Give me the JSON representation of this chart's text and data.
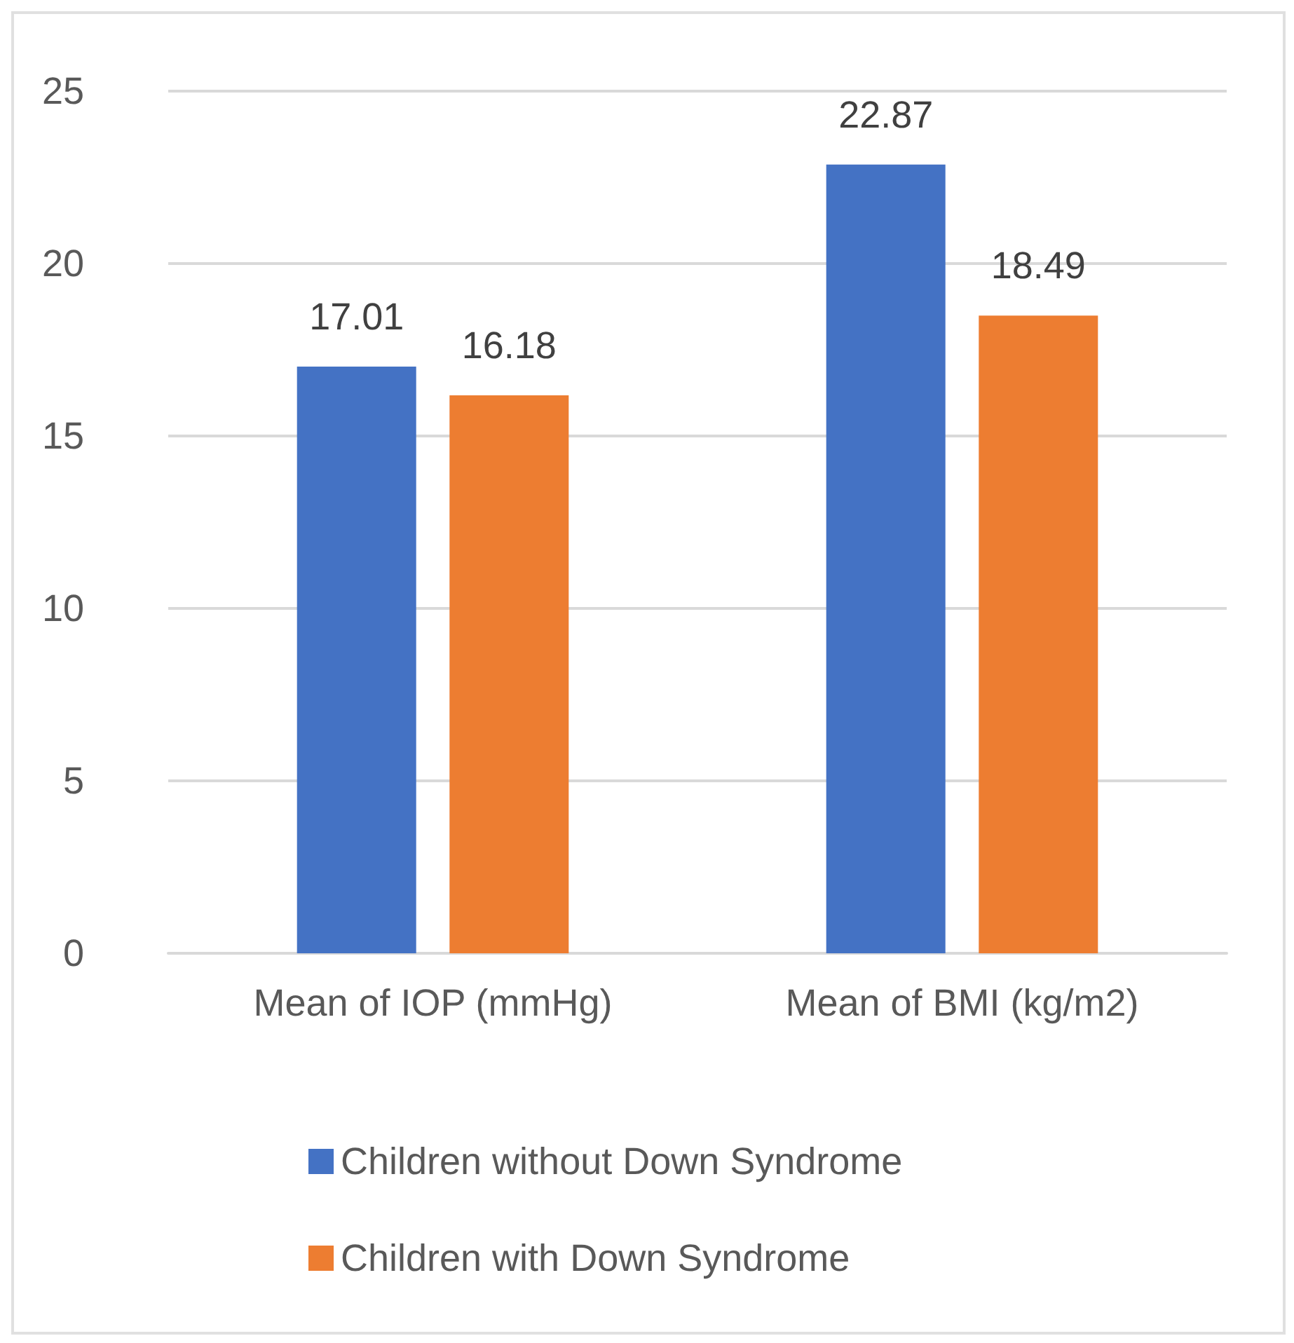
{
  "chart_data": {
    "type": "bar",
    "categories": [
      "Mean of IOP (mmHg)",
      "Mean of BMI (kg/m2)"
    ],
    "series": [
      {
        "name": "Children without Down Syndrome",
        "color": "#4472c4",
        "values": [
          17.01,
          22.87
        ]
      },
      {
        "name": "Children with Down Syndrome",
        "color": "#ed7d31",
        "values": [
          16.18,
          18.49
        ]
      }
    ],
    "ylim": [
      0,
      25
    ],
    "yticks": [
      0,
      5,
      10,
      15,
      20,
      25
    ],
    "grid": "y",
    "legend": "bottom",
    "data_labels": true
  }
}
